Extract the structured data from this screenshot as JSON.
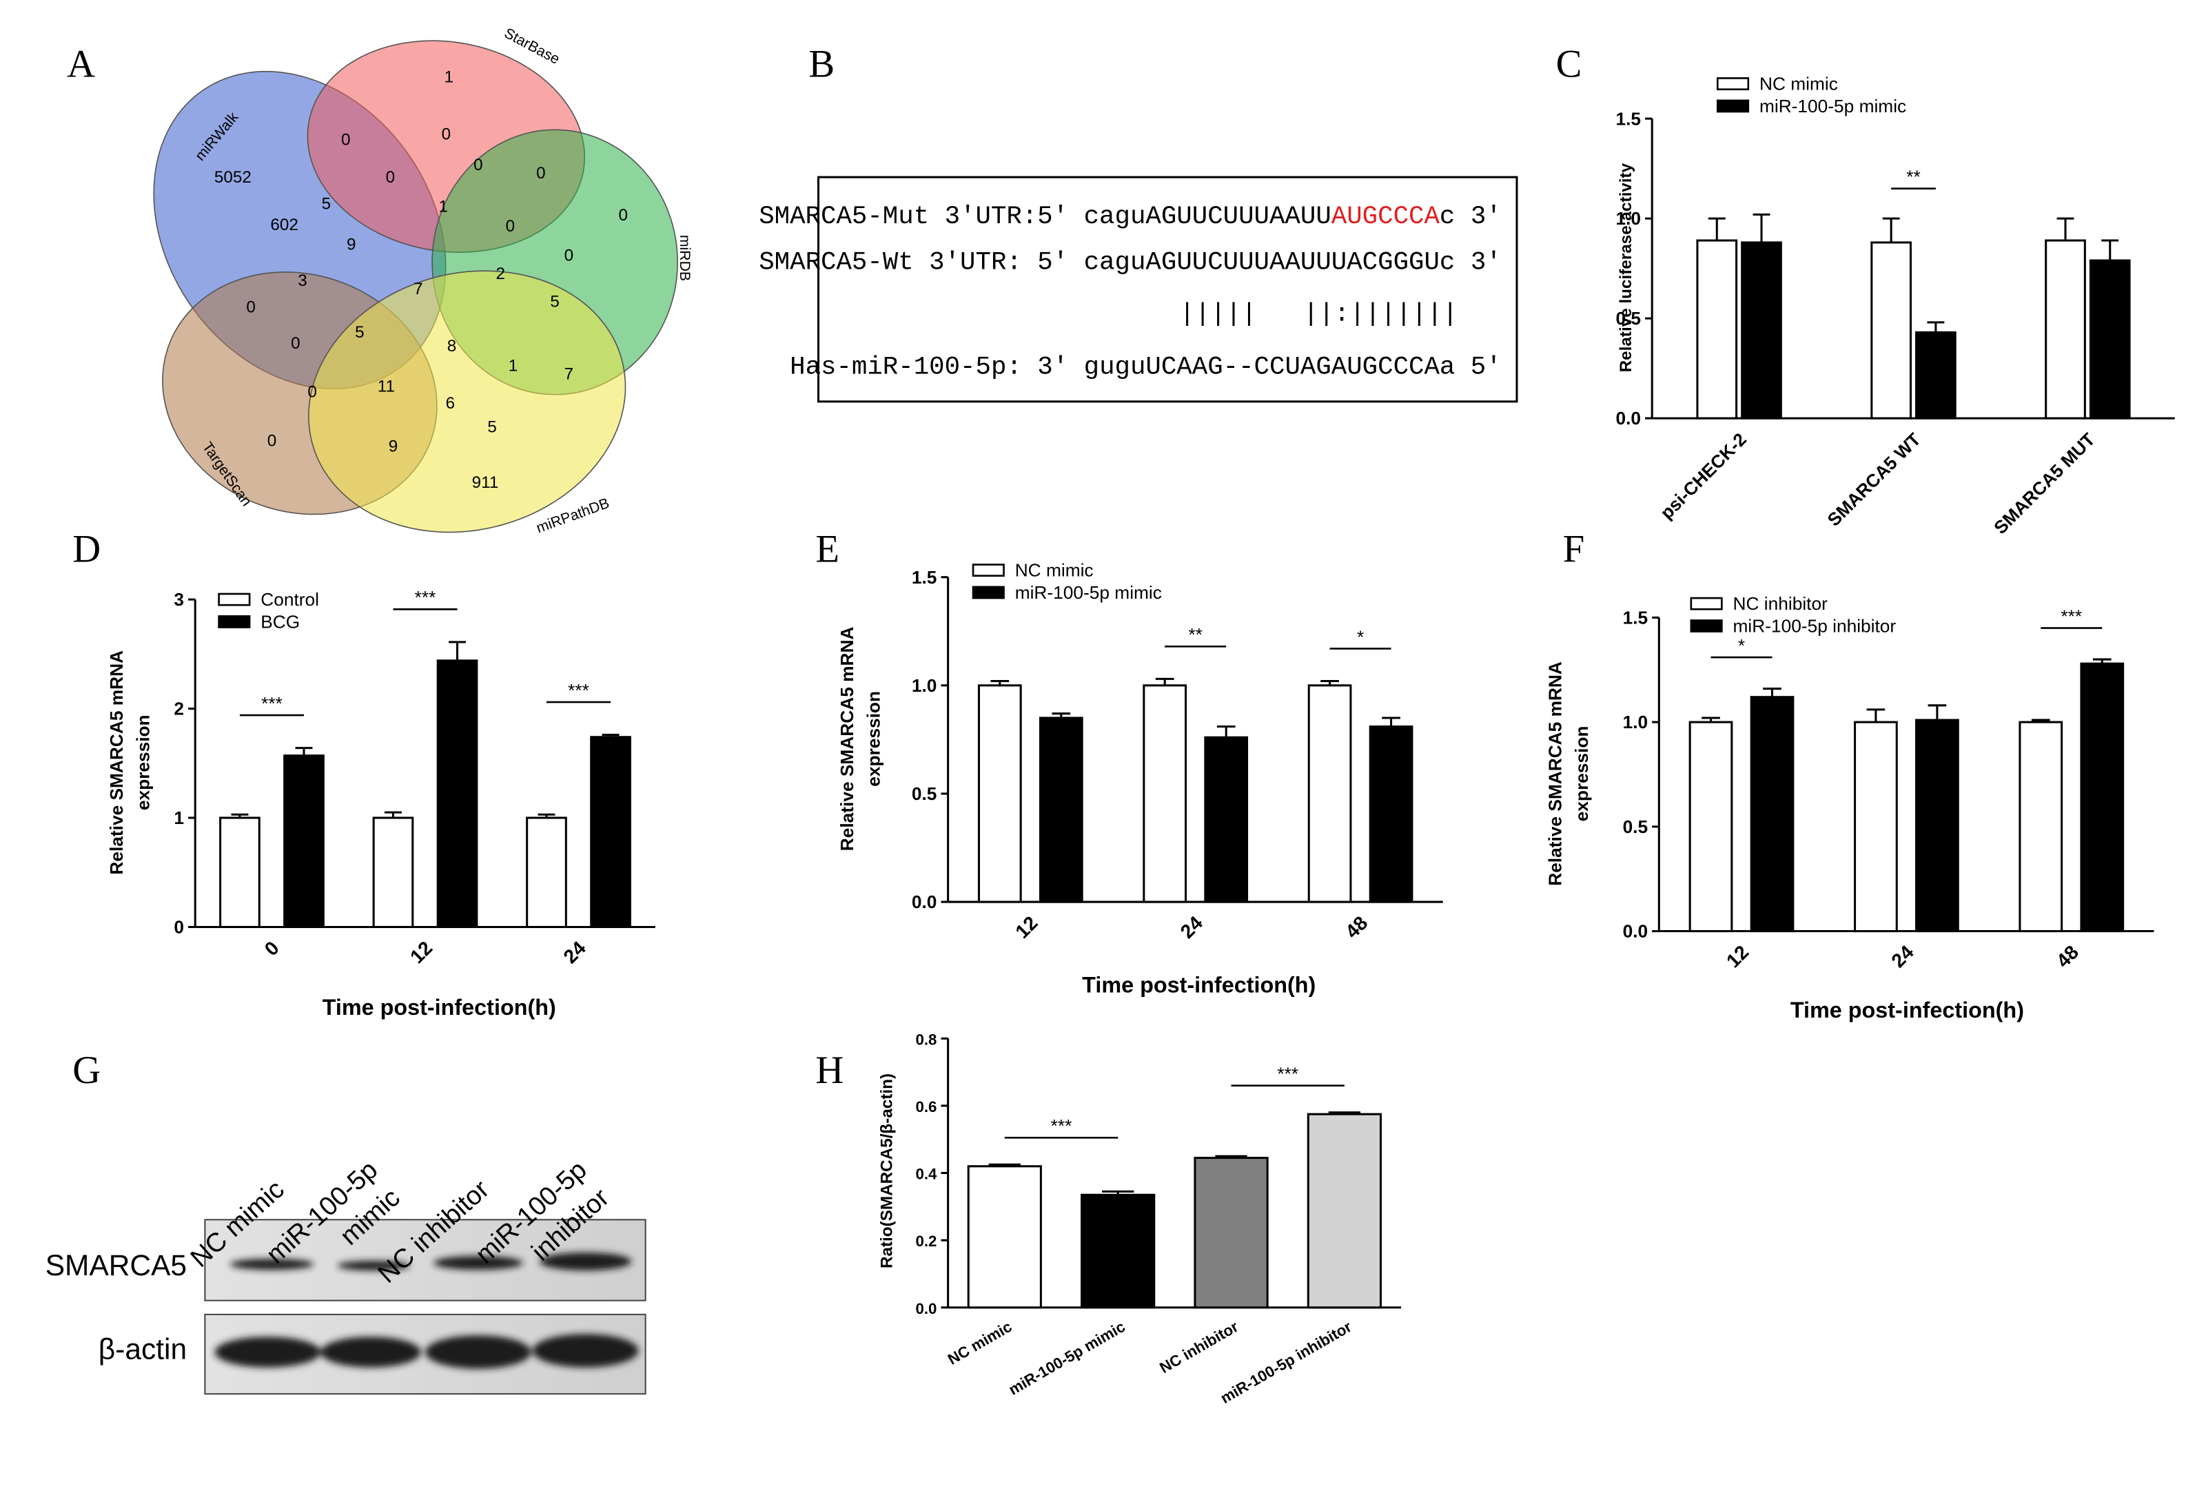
{
  "panels": {
    "a": "A",
    "b": "B",
    "c": "C",
    "d": "D",
    "e": "E",
    "f": "F",
    "g": "G",
    "h": "H"
  },
  "venn": {
    "sets": [
      "miRWalk",
      "StarBase",
      "miRDB",
      "TargetScan",
      "miRPathDB"
    ],
    "counts": [
      1,
      0,
      0,
      0,
      0,
      0,
      5052,
      0,
      1,
      0,
      602,
      5,
      9,
      0,
      3,
      7,
      2,
      5,
      0,
      0,
      5,
      8,
      1,
      7,
      0,
      11,
      6,
      5,
      0,
      9,
      911
    ]
  },
  "sequence": {
    "mut": {
      "prefix": "SMARCA5-Mut 3'UTR:5′ caguAGUUCUUUAAUU",
      "site": "AUGCCCA",
      "suffix": "c 3′"
    },
    "wt": "SMARCA5-Wt 3'UTR: 5′ caguAGUUCUUUAAUUUACGGGUc 3′",
    "pairing": "|||||   ||:|||||||",
    "mirna": "Has-miR-100-5p: 3′ guguUCAAG--CCUAGAUGCCCAa 5′"
  },
  "blot": {
    "lanes": [
      [
        "NC mimic"
      ],
      [
        "miR-100-5p",
        "mimic"
      ],
      [
        "NC inhibitor"
      ],
      [
        "miR-100-5p",
        "inhibitor"
      ]
    ],
    "rows": [
      "SMARCA5",
      "β-actin"
    ]
  },
  "chart_data": [
    {
      "type": "bar",
      "ylabel": [
        "Relative luciferase activity"
      ],
      "categories": [
        "psi-CHECK-2",
        "SMARCA5 WT",
        "SMARCA5 MUT"
      ],
      "series": [
        {
          "name": "NC mimic",
          "color": "#ffffff",
          "values": [
            0.89,
            0.88,
            0.89
          ],
          "errors": [
            0.11,
            0.12,
            0.11
          ]
        },
        {
          "name": "miR-100-5p mimic",
          "color": "#000000",
          "values": [
            0.88,
            0.43,
            0.79
          ],
          "errors": [
            0.14,
            0.05,
            0.1
          ]
        }
      ],
      "ylim": [
        0,
        1.5
      ],
      "yticks": [
        {
          "value": 0,
          "label": "0.0"
        },
        0.5,
        {
          "value": 1,
          "label": "1.0"
        },
        1.5
      ],
      "annotations": [
        "**"
      ]
    },
    {
      "type": "bar",
      "ylabel": [
        "Relative SMARCA5 mRNA",
        "expression"
      ],
      "xlabel": "Time post-infection(h)",
      "categories": [
        "0",
        "12",
        "24"
      ],
      "series": [
        {
          "name": "Control",
          "color": "#ffffff",
          "values": [
            1.0,
            1.0,
            1.0
          ],
          "errors": [
            0.03,
            0.05,
            0.03
          ]
        },
        {
          "name": "BCG",
          "color": "#000000",
          "values": [
            1.57,
            2.44,
            1.74
          ],
          "errors": [
            0.07,
            0.17,
            0.02
          ]
        }
      ],
      "ylim": [
        0,
        3
      ],
      "yticks": [
        0,
        1,
        2,
        3
      ],
      "annotations": [
        "***",
        "***",
        "***"
      ]
    },
    {
      "type": "bar",
      "ylabel": [
        "Relative SMARCA5 mRNA",
        "expression"
      ],
      "xlabel": "Time post-infection(h)",
      "categories": [
        "12",
        "24",
        "48"
      ],
      "series": [
        {
          "name": "NC mimic",
          "color": "#ffffff",
          "values": [
            1.0,
            1.0,
            1.0
          ],
          "errors": [
            0.02,
            0.03,
            0.02
          ]
        },
        {
          "name": "miR-100-5p mimic",
          "color": "#000000",
          "values": [
            0.85,
            0.76,
            0.81
          ],
          "errors": [
            0.02,
            0.05,
            0.04
          ]
        }
      ],
      "ylim": [
        0,
        1.5
      ],
      "yticks": [
        {
          "value": 0,
          "label": "0.0"
        },
        0.5,
        {
          "value": 1,
          "label": "1.0"
        },
        1.5
      ],
      "annotations": [
        "**",
        "*"
      ]
    },
    {
      "type": "bar",
      "ylabel": [
        "Relative SMARCA5 mRNA",
        "expression"
      ],
      "xlabel": "Time post-infection(h)",
      "categories": [
        "12",
        "24",
        "48"
      ],
      "series": [
        {
          "name": "NC inhibitor",
          "color": "#ffffff",
          "values": [
            1.0,
            1.0,
            1.0
          ],
          "errors": [
            0.02,
            0.06,
            0.01
          ]
        },
        {
          "name": "miR-100-5p inhibitor",
          "color": "#000000",
          "values": [
            1.12,
            1.01,
            1.28
          ],
          "errors": [
            0.04,
            0.07,
            0.02
          ]
        }
      ],
      "ylim": [
        0,
        1.5
      ],
      "yticks": [
        {
          "value": 0,
          "label": "0.0"
        },
        0.5,
        {
          "value": 1,
          "label": "1.0"
        },
        1.5
      ],
      "annotations": [
        "*",
        "***"
      ]
    },
    {
      "type": "bar",
      "ylabel": [
        "Ratio(SMARCA5/β-actin)"
      ],
      "categories": [
        "NC mimic",
        "miR-100-5p mimic",
        "NC inhibitor",
        "miR-100-5p inhibitor"
      ],
      "series": [
        {
          "colors": [
            "#ffffff",
            "#000000",
            "#808080",
            "#d3d3d3"
          ],
          "values": [
            0.42,
            0.335,
            0.445,
            0.575
          ],
          "errors": [
            0.005,
            0.01,
            0.005,
            0.005
          ]
        }
      ],
      "ylim": [
        0,
        0.8
      ],
      "yticks": [
        {
          "value": 0,
          "label": "0.0"
        },
        0.2,
        0.4,
        0.6,
        0.8
      ],
      "annotations": [
        "***",
        "***"
      ]
    }
  ]
}
